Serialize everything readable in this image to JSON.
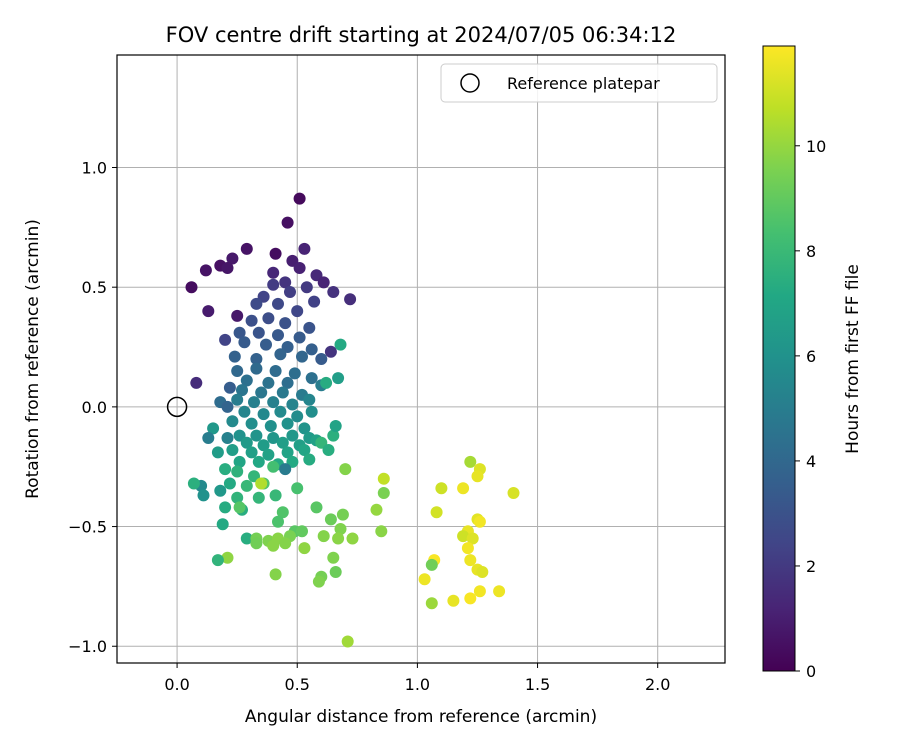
{
  "chart_data": {
    "type": "scatter",
    "title": "FOV centre drift starting at 2024/07/05 06:34:12",
    "xlabel": "Angular distance from reference (arcmin)",
    "ylabel": "Rotation from reference (arcmin)",
    "xlim": [
      -0.25,
      2.28
    ],
    "ylim": [
      -1.07,
      1.47
    ],
    "xticks": [
      0.0,
      0.5,
      1.0,
      1.5,
      2.0
    ],
    "xtick_labels": [
      "0.0",
      "0.5",
      "1.0",
      "1.5",
      "2.0"
    ],
    "yticks": [
      -1.0,
      -0.5,
      0.0,
      0.5,
      1.0
    ],
    "ytick_labels": [
      "−1.0",
      "−0.5",
      "0.0",
      "0.5",
      "1.0"
    ],
    "grid": true,
    "legend": {
      "position": "top-right",
      "label": "Reference platepar"
    },
    "reference_point": {
      "x": 0.0,
      "y": 0.0
    },
    "colorbar": {
      "label": "Hours from first FF file",
      "colormap": "viridis",
      "range": [
        0,
        11.9
      ],
      "ticks": [
        0,
        2,
        4,
        6,
        8,
        10
      ],
      "tick_labels": [
        "0",
        "2",
        "4",
        "6",
        "8",
        "10"
      ]
    },
    "points": [
      {
        "x": 0.51,
        "y": 0.87,
        "h": 0.3
      },
      {
        "x": 0.46,
        "y": 0.77,
        "h": 0.5
      },
      {
        "x": 0.29,
        "y": 0.66,
        "h": 0.6
      },
      {
        "x": 0.41,
        "y": 0.64,
        "h": 0.4
      },
      {
        "x": 0.23,
        "y": 0.62,
        "h": 0.8
      },
      {
        "x": 0.18,
        "y": 0.59,
        "h": 0.5
      },
      {
        "x": 0.21,
        "y": 0.58,
        "h": 0.7
      },
      {
        "x": 0.12,
        "y": 0.57,
        "h": 0.6
      },
      {
        "x": 0.06,
        "y": 0.5,
        "h": 0.4
      },
      {
        "x": 0.13,
        "y": 0.4,
        "h": 0.9
      },
      {
        "x": 0.25,
        "y": 0.38,
        "h": 0.8
      },
      {
        "x": 0.08,
        "y": 0.1,
        "h": 1.5
      },
      {
        "x": 0.53,
        "y": 0.66,
        "h": 1.2
      },
      {
        "x": 0.48,
        "y": 0.61,
        "h": 1.0
      },
      {
        "x": 0.51,
        "y": 0.58,
        "h": 1.1
      },
      {
        "x": 0.4,
        "y": 0.56,
        "h": 1.3
      },
      {
        "x": 0.58,
        "y": 0.55,
        "h": 1.4
      },
      {
        "x": 0.61,
        "y": 0.52,
        "h": 1.2
      },
      {
        "x": 0.45,
        "y": 0.52,
        "h": 1.8
      },
      {
        "x": 0.54,
        "y": 0.5,
        "h": 2.0
      },
      {
        "x": 0.47,
        "y": 0.48,
        "h": 2.2
      },
      {
        "x": 0.4,
        "y": 0.51,
        "h": 2.1
      },
      {
        "x": 0.36,
        "y": 0.46,
        "h": 2.4
      },
      {
        "x": 0.72,
        "y": 0.45,
        "h": 1.6
      },
      {
        "x": 0.65,
        "y": 0.48,
        "h": 1.7
      },
      {
        "x": 0.57,
        "y": 0.44,
        "h": 2.3
      },
      {
        "x": 0.5,
        "y": 0.4,
        "h": 2.5
      },
      {
        "x": 0.42,
        "y": 0.43,
        "h": 2.6
      },
      {
        "x": 0.33,
        "y": 0.43,
        "h": 2.7
      },
      {
        "x": 0.38,
        "y": 0.37,
        "h": 2.8
      },
      {
        "x": 0.31,
        "y": 0.36,
        "h": 2.9
      },
      {
        "x": 0.45,
        "y": 0.35,
        "h": 3.0
      },
      {
        "x": 0.55,
        "y": 0.33,
        "h": 3.1
      },
      {
        "x": 0.26,
        "y": 0.31,
        "h": 3.2
      },
      {
        "x": 0.34,
        "y": 0.31,
        "h": 3.1
      },
      {
        "x": 0.42,
        "y": 0.3,
        "h": 3.3
      },
      {
        "x": 0.51,
        "y": 0.29,
        "h": 3.4
      },
      {
        "x": 0.2,
        "y": 0.28,
        "h": 2.4
      },
      {
        "x": 0.28,
        "y": 0.27,
        "h": 3.4
      },
      {
        "x": 0.37,
        "y": 0.26,
        "h": 3.5
      },
      {
        "x": 0.46,
        "y": 0.25,
        "h": 3.6
      },
      {
        "x": 0.56,
        "y": 0.24,
        "h": 3.6
      },
      {
        "x": 0.64,
        "y": 0.23,
        "h": 1.8
      },
      {
        "x": 0.24,
        "y": 0.21,
        "h": 3.7
      },
      {
        "x": 0.33,
        "y": 0.2,
        "h": 3.7
      },
      {
        "x": 0.43,
        "y": 0.22,
        "h": 3.8
      },
      {
        "x": 0.52,
        "y": 0.21,
        "h": 3.9
      },
      {
        "x": 0.6,
        "y": 0.2,
        "h": 3.4
      },
      {
        "x": 0.25,
        "y": 0.15,
        "h": 4.0
      },
      {
        "x": 0.33,
        "y": 0.16,
        "h": 4.1
      },
      {
        "x": 0.41,
        "y": 0.15,
        "h": 4.2
      },
      {
        "x": 0.49,
        "y": 0.14,
        "h": 4.3
      },
      {
        "x": 0.29,
        "y": 0.11,
        "h": 4.4
      },
      {
        "x": 0.38,
        "y": 0.1,
        "h": 4.5
      },
      {
        "x": 0.46,
        "y": 0.1,
        "h": 4.3
      },
      {
        "x": 0.56,
        "y": 0.12,
        "h": 4.4
      },
      {
        "x": 0.22,
        "y": 0.08,
        "h": 3.5
      },
      {
        "x": 0.27,
        "y": 0.07,
        "h": 4.6
      },
      {
        "x": 0.35,
        "y": 0.06,
        "h": 4.7
      },
      {
        "x": 0.44,
        "y": 0.06,
        "h": 4.8
      },
      {
        "x": 0.52,
        "y": 0.05,
        "h": 4.9
      },
      {
        "x": 0.6,
        "y": 0.09,
        "h": 5.0
      },
      {
        "x": 0.18,
        "y": 0.02,
        "h": 4.2
      },
      {
        "x": 0.25,
        "y": 0.03,
        "h": 5.0
      },
      {
        "x": 0.32,
        "y": 0.02,
        "h": 5.1
      },
      {
        "x": 0.4,
        "y": 0.02,
        "h": 5.2
      },
      {
        "x": 0.48,
        "y": 0.01,
        "h": 5.3
      },
      {
        "x": 0.55,
        "y": 0.03,
        "h": 5.4
      },
      {
        "x": 0.21,
        "y": 0.0,
        "h": 3.8
      },
      {
        "x": 0.28,
        "y": -0.02,
        "h": 5.4
      },
      {
        "x": 0.36,
        "y": -0.03,
        "h": 5.5
      },
      {
        "x": 0.43,
        "y": -0.02,
        "h": 5.6
      },
      {
        "x": 0.5,
        "y": -0.04,
        "h": 5.7
      },
      {
        "x": 0.56,
        "y": -0.02,
        "h": 5.8
      },
      {
        "x": 0.23,
        "y": -0.06,
        "h": 5.6
      },
      {
        "x": 0.31,
        "y": -0.07,
        "h": 5.8
      },
      {
        "x": 0.39,
        "y": -0.08,
        "h": 5.9
      },
      {
        "x": 0.46,
        "y": -0.07,
        "h": 6.0
      },
      {
        "x": 0.53,
        "y": -0.09,
        "h": 6.1
      },
      {
        "x": 0.15,
        "y": -0.09,
        "h": 6.3
      },
      {
        "x": 0.26,
        "y": -0.12,
        "h": 6.0
      },
      {
        "x": 0.33,
        "y": -0.12,
        "h": 6.1
      },
      {
        "x": 0.4,
        "y": -0.13,
        "h": 6.2
      },
      {
        "x": 0.48,
        "y": -0.12,
        "h": 6.3
      },
      {
        "x": 0.55,
        "y": -0.13,
        "h": 6.4
      },
      {
        "x": 0.13,
        "y": -0.13,
        "h": 5.0
      },
      {
        "x": 0.21,
        "y": -0.13,
        "h": 5.2
      },
      {
        "x": 0.29,
        "y": -0.15,
        "h": 6.4
      },
      {
        "x": 0.36,
        "y": -0.16,
        "h": 6.5
      },
      {
        "x": 0.44,
        "y": -0.15,
        "h": 6.6
      },
      {
        "x": 0.51,
        "y": -0.16,
        "h": 6.7
      },
      {
        "x": 0.58,
        "y": -0.14,
        "h": 6.8
      },
      {
        "x": 0.65,
        "y": -0.12,
        "h": 7.5
      },
      {
        "x": 0.23,
        "y": -0.18,
        "h": 6.6
      },
      {
        "x": 0.31,
        "y": -0.19,
        "h": 6.7
      },
      {
        "x": 0.38,
        "y": -0.2,
        "h": 6.8
      },
      {
        "x": 0.46,
        "y": -0.19,
        "h": 6.9
      },
      {
        "x": 0.53,
        "y": -0.18,
        "h": 7.0
      },
      {
        "x": 0.6,
        "y": -0.15,
        "h": 7.8
      },
      {
        "x": 0.17,
        "y": -0.19,
        "h": 6.5
      },
      {
        "x": 0.26,
        "y": -0.23,
        "h": 7.0
      },
      {
        "x": 0.34,
        "y": -0.23,
        "h": 7.1
      },
      {
        "x": 0.42,
        "y": -0.24,
        "h": 7.2
      },
      {
        "x": 0.48,
        "y": -0.23,
        "h": 7.2
      },
      {
        "x": 0.55,
        "y": -0.22,
        "h": 7.3
      },
      {
        "x": 0.63,
        "y": -0.18,
        "h": 7.4
      },
      {
        "x": 0.66,
        "y": -0.08,
        "h": 6.9
      },
      {
        "x": 0.68,
        "y": 0.26,
        "h": 7.2
      },
      {
        "x": 0.67,
        "y": 0.12,
        "h": 6.6
      },
      {
        "x": 0.62,
        "y": 0.1,
        "h": 7.3
      },
      {
        "x": 0.45,
        "y": -0.26,
        "h": 4.9
      },
      {
        "x": 0.2,
        "y": -0.26,
        "h": 7.4
      },
      {
        "x": 0.25,
        "y": -0.27,
        "h": 7.6
      },
      {
        "x": 0.32,
        "y": -0.29,
        "h": 7.8
      },
      {
        "x": 0.4,
        "y": -0.25,
        "h": 8.3
      },
      {
        "x": 0.36,
        "y": -0.32,
        "h": 8.6
      },
      {
        "x": 0.29,
        "y": -0.33,
        "h": 7.9
      },
      {
        "x": 0.22,
        "y": -0.32,
        "h": 7.2
      },
      {
        "x": 0.1,
        "y": -0.33,
        "h": 5.6
      },
      {
        "x": 0.07,
        "y": -0.32,
        "h": 7.5
      },
      {
        "x": 0.11,
        "y": -0.37,
        "h": 6.0
      },
      {
        "x": 0.18,
        "y": -0.35,
        "h": 6.3
      },
      {
        "x": 0.25,
        "y": -0.38,
        "h": 7.7
      },
      {
        "x": 0.34,
        "y": -0.38,
        "h": 7.8
      },
      {
        "x": 0.41,
        "y": -0.37,
        "h": 7.9
      },
      {
        "x": 0.5,
        "y": -0.34,
        "h": 8.4
      },
      {
        "x": 0.2,
        "y": -0.42,
        "h": 7.3
      },
      {
        "x": 0.27,
        "y": -0.43,
        "h": 7.4
      },
      {
        "x": 0.26,
        "y": -0.42,
        "h": 8.7
      },
      {
        "x": 0.44,
        "y": -0.44,
        "h": 8.6
      },
      {
        "x": 0.58,
        "y": -0.42,
        "h": 8.8
      },
      {
        "x": 0.19,
        "y": -0.49,
        "h": 7.2
      },
      {
        "x": 0.42,
        "y": -0.48,
        "h": 8.5
      },
      {
        "x": 0.49,
        "y": -0.52,
        "h": 8.8
      },
      {
        "x": 0.52,
        "y": -0.52,
        "h": 9.0
      },
      {
        "x": 0.64,
        "y": -0.47,
        "h": 9.2
      },
      {
        "x": 0.69,
        "y": -0.45,
        "h": 9.4
      },
      {
        "x": 0.68,
        "y": -0.51,
        "h": 9.6
      },
      {
        "x": 0.29,
        "y": -0.55,
        "h": 7.4
      },
      {
        "x": 0.33,
        "y": -0.55,
        "h": 9.4
      },
      {
        "x": 0.38,
        "y": -0.56,
        "h": 9.6
      },
      {
        "x": 0.42,
        "y": -0.55,
        "h": 9.8
      },
      {
        "x": 0.47,
        "y": -0.54,
        "h": 9.5
      },
      {
        "x": 0.45,
        "y": -0.57,
        "h": 9.7
      },
      {
        "x": 0.33,
        "y": -0.57,
        "h": 9.3
      },
      {
        "x": 0.4,
        "y": -0.58,
        "h": 9.8
      },
      {
        "x": 0.53,
        "y": -0.59,
        "h": 9.9
      },
      {
        "x": 0.61,
        "y": -0.54,
        "h": 9.7
      },
      {
        "x": 0.67,
        "y": -0.55,
        "h": 9.8
      },
      {
        "x": 0.73,
        "y": -0.55,
        "h": 9.9
      },
      {
        "x": 0.21,
        "y": -0.63,
        "h": 9.9
      },
      {
        "x": 0.17,
        "y": -0.64,
        "h": 7.7
      },
      {
        "x": 0.65,
        "y": -0.63,
        "h": 9.6
      },
      {
        "x": 0.41,
        "y": -0.7,
        "h": 9.7
      },
      {
        "x": 0.6,
        "y": -0.71,
        "h": 9.4
      },
      {
        "x": 0.66,
        "y": -0.69,
        "h": 9.2
      },
      {
        "x": 0.59,
        "y": -0.73,
        "h": 9.6
      },
      {
        "x": 0.71,
        "y": -0.98,
        "h": 10.2
      },
      {
        "x": 0.35,
        "y": -0.32,
        "h": 10.5
      },
      {
        "x": 0.86,
        "y": -0.3,
        "h": 10.8
      },
      {
        "x": 0.7,
        "y": -0.26,
        "h": 9.7
      },
      {
        "x": 0.86,
        "y": -0.36,
        "h": 9.5
      },
      {
        "x": 0.83,
        "y": -0.43,
        "h": 10.0
      },
      {
        "x": 0.85,
        "y": -0.52,
        "h": 9.8
      },
      {
        "x": 1.22,
        "y": -0.23,
        "h": 10.3
      },
      {
        "x": 1.26,
        "y": -0.26,
        "h": 11.3
      },
      {
        "x": 1.25,
        "y": -0.29,
        "h": 11.5
      },
      {
        "x": 1.19,
        "y": -0.34,
        "h": 11.6
      },
      {
        "x": 1.1,
        "y": -0.34,
        "h": 11.0
      },
      {
        "x": 1.4,
        "y": -0.36,
        "h": 11.2
      },
      {
        "x": 1.08,
        "y": -0.44,
        "h": 11.1
      },
      {
        "x": 1.25,
        "y": -0.47,
        "h": 11.4
      },
      {
        "x": 1.26,
        "y": -0.48,
        "h": 11.7
      },
      {
        "x": 1.21,
        "y": -0.52,
        "h": 11.5
      },
      {
        "x": 1.19,
        "y": -0.54,
        "h": 11.0
      },
      {
        "x": 1.23,
        "y": -0.55,
        "h": 11.3
      },
      {
        "x": 1.21,
        "y": -0.59,
        "h": 11.7
      },
      {
        "x": 1.22,
        "y": -0.64,
        "h": 11.6
      },
      {
        "x": 1.07,
        "y": -0.64,
        "h": 11.8
      },
      {
        "x": 1.06,
        "y": -0.66,
        "h": 9.3
      },
      {
        "x": 1.25,
        "y": -0.68,
        "h": 11.5
      },
      {
        "x": 1.27,
        "y": -0.69,
        "h": 11.3
      },
      {
        "x": 1.03,
        "y": -0.72,
        "h": 11.6
      },
      {
        "x": 1.26,
        "y": -0.77,
        "h": 11.7
      },
      {
        "x": 1.34,
        "y": -0.77,
        "h": 11.6
      },
      {
        "x": 1.22,
        "y": -0.8,
        "h": 11.8
      },
      {
        "x": 1.15,
        "y": -0.81,
        "h": 11.5
      },
      {
        "x": 1.06,
        "y": -0.82,
        "h": 10.1
      }
    ]
  }
}
